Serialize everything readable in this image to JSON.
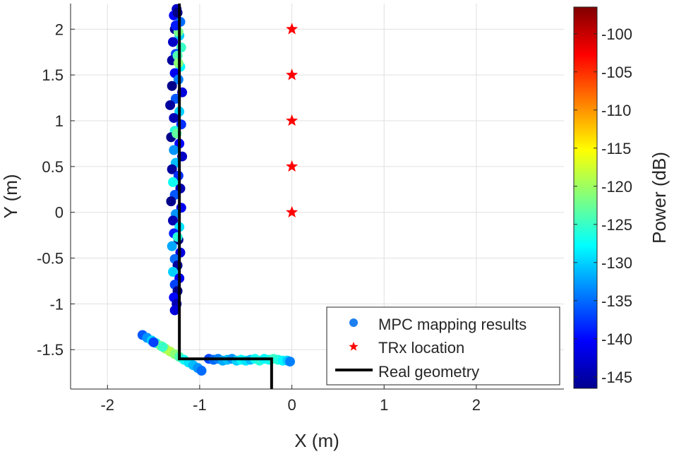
{
  "chart_data": {
    "type": "scatter",
    "title": "",
    "xlabel": "X (m)",
    "ylabel": "Y (m)",
    "xlim": [
      -2.4,
      2.95
    ],
    "ylim": [
      -1.93,
      2.28
    ],
    "xticks": [
      -2,
      -1,
      0,
      1,
      2
    ],
    "xtick_labels": [
      "-2",
      "-1",
      "0",
      "1",
      "2"
    ],
    "yticks": [
      -1.5,
      -1,
      -0.5,
      0,
      0.5,
      1,
      1.5,
      2
    ],
    "ytick_labels": [
      "-1.5",
      "-1",
      "-0.5",
      "0",
      "0.5",
      "1",
      "1.5",
      "2"
    ],
    "grid": true,
    "series": [
      {
        "name": "MPC mapping results",
        "marker": "circle",
        "color_by": "power_db",
        "points": [
          {
            "x": -1.25,
            "y": 2.22,
            "p": -143
          },
          {
            "x": -1.28,
            "y": 2.15,
            "p": -140
          },
          {
            "x": -1.21,
            "y": 2.08,
            "p": -135
          },
          {
            "x": -1.27,
            "y": 2.0,
            "p": -145
          },
          {
            "x": -1.22,
            "y": 1.93,
            "p": -130
          },
          {
            "x": -1.29,
            "y": 1.86,
            "p": -143
          },
          {
            "x": -1.2,
            "y": 1.8,
            "p": -125
          },
          {
            "x": -1.26,
            "y": 1.73,
            "p": -137
          },
          {
            "x": -1.3,
            "y": 1.66,
            "p": -145
          },
          {
            "x": -1.21,
            "y": 1.59,
            "p": -128
          },
          {
            "x": -1.27,
            "y": 1.52,
            "p": -141
          },
          {
            "x": -1.23,
            "y": 1.45,
            "p": -134
          },
          {
            "x": -1.3,
            "y": 1.38,
            "p": -146
          },
          {
            "x": -1.19,
            "y": 1.31,
            "p": -142
          },
          {
            "x": -1.26,
            "y": 1.24,
            "p": -136
          },
          {
            "x": -1.32,
            "y": 1.17,
            "p": -145
          },
          {
            "x": -1.22,
            "y": 1.1,
            "p": -130
          },
          {
            "x": -1.28,
            "y": 1.03,
            "p": -144
          },
          {
            "x": -1.2,
            "y": 0.96,
            "p": -138
          },
          {
            "x": -1.27,
            "y": 0.89,
            "p": -126
          },
          {
            "x": -1.31,
            "y": 0.82,
            "p": -146
          },
          {
            "x": -1.22,
            "y": 0.75,
            "p": -140
          },
          {
            "x": -1.28,
            "y": 0.68,
            "p": -133
          },
          {
            "x": -1.19,
            "y": 0.61,
            "p": -143
          },
          {
            "x": -1.26,
            "y": 0.54,
            "p": -131
          },
          {
            "x": -1.3,
            "y": 0.47,
            "p": -145
          },
          {
            "x": -1.23,
            "y": 0.4,
            "p": -138
          },
          {
            "x": -1.29,
            "y": 0.33,
            "p": -127
          },
          {
            "x": -1.21,
            "y": 0.26,
            "p": -144
          },
          {
            "x": -1.27,
            "y": 0.19,
            "p": -136
          },
          {
            "x": -1.31,
            "y": 0.12,
            "p": -146
          },
          {
            "x": -1.2,
            "y": 0.05,
            "p": -141
          },
          {
            "x": -1.26,
            "y": -0.02,
            "p": -133
          },
          {
            "x": -1.29,
            "y": -0.09,
            "p": -144
          },
          {
            "x": -1.22,
            "y": -0.16,
            "p": -129
          },
          {
            "x": -1.28,
            "y": -0.23,
            "p": -139
          },
          {
            "x": -1.23,
            "y": -0.3,
            "p": -146
          },
          {
            "x": -1.3,
            "y": -0.37,
            "p": -132
          },
          {
            "x": -1.21,
            "y": -0.44,
            "p": -142
          },
          {
            "x": -1.27,
            "y": -0.51,
            "p": -135
          },
          {
            "x": -1.24,
            "y": -0.58,
            "p": -145
          },
          {
            "x": -1.29,
            "y": -0.65,
            "p": -130
          },
          {
            "x": -1.22,
            "y": -0.72,
            "p": -141
          },
          {
            "x": -1.27,
            "y": -0.79,
            "p": -137
          },
          {
            "x": -1.24,
            "y": -0.86,
            "p": -146
          },
          {
            "x": -1.28,
            "y": -0.93,
            "p": -140
          },
          {
            "x": -1.25,
            "y": -1.0,
            "p": -144
          },
          {
            "x": -1.27,
            "y": -1.07,
            "p": -142
          },
          {
            "x": -1.23,
            "y": 1.97,
            "p": -122
          },
          {
            "x": -1.24,
            "y": 1.71,
            "p": -124
          },
          {
            "x": -1.23,
            "y": 1.63,
            "p": -121
          },
          {
            "x": -1.25,
            "y": 0.86,
            "p": -123
          },
          {
            "x": -1.24,
            "y": -0.27,
            "p": -126
          },
          {
            "x": -1.24,
            "y": 2.18,
            "p": -146
          },
          {
            "x": -1.26,
            "y": 2.04,
            "p": -139
          },
          {
            "x": -1.62,
            "y": -1.34,
            "p": -136
          },
          {
            "x": -1.57,
            "y": -1.37,
            "p": -133
          },
          {
            "x": -1.52,
            "y": -1.4,
            "p": -130
          },
          {
            "x": -1.47,
            "y": -1.43,
            "p": -126
          },
          {
            "x": -1.42,
            "y": -1.46,
            "p": -122
          },
          {
            "x": -1.37,
            "y": -1.49,
            "p": -120
          },
          {
            "x": -1.32,
            "y": -1.52,
            "p": -119
          },
          {
            "x": -1.27,
            "y": -1.55,
            "p": -121
          },
          {
            "x": -1.22,
            "y": -1.58,
            "p": -124
          },
          {
            "x": -1.17,
            "y": -1.61,
            "p": -127
          },
          {
            "x": -1.12,
            "y": -1.64,
            "p": -129
          },
          {
            "x": -1.07,
            "y": -1.67,
            "p": -131
          },
          {
            "x": -1.02,
            "y": -1.7,
            "p": -133
          },
          {
            "x": -0.98,
            "y": -1.73,
            "p": -135
          },
          {
            "x": -1.5,
            "y": -1.42,
            "p": -137
          },
          {
            "x": -1.4,
            "y": -1.47,
            "p": -125
          },
          {
            "x": -0.9,
            "y": -1.6,
            "p": -137
          },
          {
            "x": -0.85,
            "y": -1.61,
            "p": -135
          },
          {
            "x": -0.8,
            "y": -1.6,
            "p": -134
          },
          {
            "x": -0.75,
            "y": -1.62,
            "p": -132
          },
          {
            "x": -0.7,
            "y": -1.61,
            "p": -131
          },
          {
            "x": -0.65,
            "y": -1.6,
            "p": -133
          },
          {
            "x": -0.6,
            "y": -1.62,
            "p": -130
          },
          {
            "x": -0.55,
            "y": -1.61,
            "p": -128
          },
          {
            "x": -0.5,
            "y": -1.62,
            "p": -129
          },
          {
            "x": -0.45,
            "y": -1.61,
            "p": -131
          },
          {
            "x": -0.4,
            "y": -1.6,
            "p": -127
          },
          {
            "x": -0.35,
            "y": -1.62,
            "p": -126
          },
          {
            "x": -0.3,
            "y": -1.6,
            "p": -128
          },
          {
            "x": -0.25,
            "y": -1.61,
            "p": -127
          },
          {
            "x": -0.2,
            "y": -1.6,
            "p": -125
          },
          {
            "x": -0.15,
            "y": -1.61,
            "p": -126
          },
          {
            "x": -0.1,
            "y": -1.62,
            "p": -128
          },
          {
            "x": -0.05,
            "y": -1.62,
            "p": -130
          },
          {
            "x": -0.02,
            "y": -1.63,
            "p": -134
          }
        ]
      },
      {
        "name": "TRx location",
        "marker": "star",
        "color": "#ff0000",
        "points": [
          {
            "x": 0,
            "y": 0
          },
          {
            "x": 0,
            "y": 0.5
          },
          {
            "x": 0,
            "y": 1
          },
          {
            "x": 0,
            "y": 1.5
          },
          {
            "x": 0,
            "y": 2
          }
        ]
      },
      {
        "name": "Real geometry",
        "type": "line",
        "color": "#000000",
        "points": [
          {
            "x": -1.22,
            "y": 2.28
          },
          {
            "x": -1.22,
            "y": -1.6
          },
          {
            "x": -0.22,
            "y": -1.6
          },
          {
            "x": -0.22,
            "y": -1.93
          }
        ]
      }
    ],
    "legend": {
      "location": "bottom-right",
      "entries": [
        "MPC mapping results",
        "TRx location",
        "Real geometry"
      ]
    },
    "colorbar": {
      "label": "Power (dB)",
      "colormap": "jet",
      "range": [
        -146.5,
        -96.5
      ],
      "ticks": [
        -100,
        -105,
        -110,
        -115,
        -120,
        -125,
        -130,
        -135,
        -140,
        -145
      ],
      "tick_labels": [
        "-100",
        "-105",
        "-110",
        "-115",
        "-120",
        "-125",
        "-130",
        "-135",
        "-140",
        "-145"
      ]
    }
  }
}
